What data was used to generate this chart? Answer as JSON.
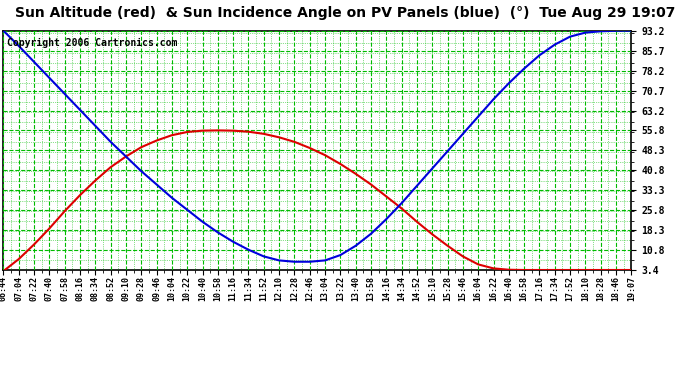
{
  "title": "Sun Altitude (red)  & Sun Incidence Angle on PV Panels (blue)  (°)  Tue Aug 29 19:07",
  "copyright": "Copyright 2006 Cartronics.com",
  "yticks": [
    3.4,
    10.8,
    18.3,
    25.8,
    33.3,
    40.8,
    48.3,
    55.8,
    63.2,
    70.7,
    78.2,
    85.7,
    93.2
  ],
  "ylim_low": 3.4,
  "ylim_high": 93.2,
  "time_labels": [
    "06:44",
    "07:04",
    "07:22",
    "07:40",
    "07:58",
    "08:16",
    "08:34",
    "08:52",
    "09:10",
    "09:28",
    "09:46",
    "10:04",
    "10:22",
    "10:40",
    "10:58",
    "11:16",
    "11:34",
    "11:52",
    "12:10",
    "12:28",
    "12:46",
    "13:04",
    "13:22",
    "13:40",
    "13:58",
    "14:16",
    "14:34",
    "14:52",
    "15:10",
    "15:28",
    "15:46",
    "16:04",
    "16:22",
    "16:40",
    "16:58",
    "17:16",
    "17:34",
    "17:52",
    "18:10",
    "18:28",
    "18:46",
    "19:07"
  ],
  "sun_altitude": [
    3.0,
    7.5,
    13.0,
    19.0,
    25.5,
    31.5,
    37.0,
    42.0,
    46.0,
    49.5,
    52.0,
    54.0,
    55.2,
    55.7,
    55.8,
    55.7,
    55.3,
    54.5,
    53.2,
    51.5,
    49.2,
    46.5,
    43.2,
    39.5,
    35.5,
    31.0,
    26.5,
    21.5,
    16.8,
    12.5,
    8.5,
    5.5,
    4.0,
    3.5,
    3.4,
    3.4,
    3.4,
    3.4,
    3.4,
    3.4,
    3.4,
    3.4
  ],
  "sun_incidence": [
    93.2,
    87.5,
    81.5,
    75.5,
    69.5,
    63.5,
    57.5,
    51.5,
    46.0,
    40.5,
    35.5,
    30.5,
    26.0,
    21.5,
    17.5,
    14.0,
    11.0,
    8.5,
    7.0,
    6.5,
    6.5,
    7.0,
    9.0,
    12.5,
    17.0,
    22.5,
    28.5,
    35.0,
    41.5,
    48.0,
    54.5,
    61.0,
    67.5,
    73.5,
    79.0,
    84.0,
    88.0,
    91.0,
    92.5,
    93.0,
    93.2,
    93.2
  ],
  "background_color": "#ffffff",
  "grid_major_color": "#00bb00",
  "grid_minor_color": "#00bb00",
  "line_red_color": "#dd0000",
  "line_blue_color": "#0000dd",
  "title_color": "#000000",
  "border_color": "#000000",
  "title_fontsize": 10,
  "tick_fontsize": 7,
  "copyright_fontsize": 7,
  "line_width": 1.5
}
